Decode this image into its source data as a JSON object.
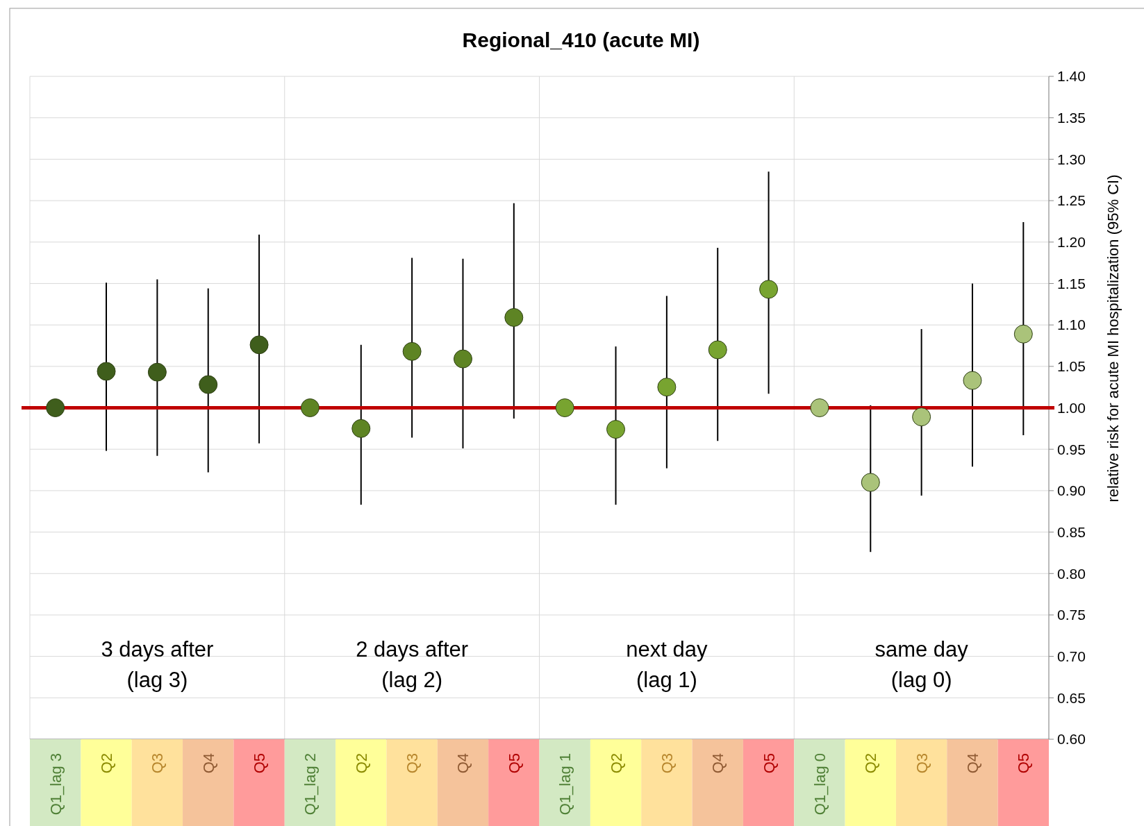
{
  "chart_data": {
    "type": "scatter",
    "title": "Regional_410 (acute MI)",
    "ylabel": "relative risk for acute MI hospitalization (95% CI)",
    "categories": [
      "Q1_lag 3",
      "Q2",
      "Q3",
      "Q4",
      "Q5",
      "Q1_lag 2",
      "Q2",
      "Q3",
      "Q4",
      "Q5",
      "Q1_lag 1",
      "Q2",
      "Q3",
      "Q4",
      "Q5",
      "Q1_lag 0",
      "Q2",
      "Q3",
      "Q4",
      "Q5"
    ],
    "values": [
      1.0,
      1.044,
      1.043,
      1.028,
      1.076,
      1.0,
      0.975,
      1.068,
      1.059,
      1.109,
      1.0,
      0.974,
      1.025,
      1.07,
      1.143,
      1.0,
      0.91,
      0.989,
      1.033,
      1.089
    ],
    "errors": [
      null,
      [
        0.948,
        1.151
      ],
      [
        0.942,
        1.155
      ],
      [
        0.922,
        1.144
      ],
      [
        0.957,
        1.209
      ],
      null,
      [
        0.883,
        1.076
      ],
      [
        0.964,
        1.181
      ],
      [
        0.951,
        1.18
      ],
      [
        0.987,
        1.247
      ],
      null,
      [
        0.883,
        1.074
      ],
      [
        0.927,
        1.135
      ],
      [
        0.96,
        1.193
      ],
      [
        1.017,
        1.285
      ],
      null,
      [
        0.826,
        1.003
      ],
      [
        0.894,
        1.095
      ],
      [
        0.929,
        1.15
      ],
      [
        0.967,
        1.224
      ]
    ],
    "colors": [
      "#3f5e1c",
      "#3f5e1c",
      "#3f5e1c",
      "#3f5e1c",
      "#3f5e1c",
      "#5e8424",
      "#5e8424",
      "#5e8424",
      "#5e8424",
      "#5e8424",
      "#78a430",
      "#78a430",
      "#78a430",
      "#78a430",
      "#78a430",
      "#aac37a",
      "#aac37a",
      "#aac37a",
      "#aac37a",
      "#aac37a"
    ],
    "marker": "circle",
    "grid": true,
    "ylim": [
      0.6,
      1.4
    ],
    "yticks": [
      {
        "value": 0.6,
        "label": "0.60"
      },
      {
        "value": 0.65,
        "label": "0.65"
      },
      {
        "value": 0.7,
        "label": "0.70"
      },
      {
        "value": 0.75,
        "label": "0.75"
      },
      {
        "value": 0.8,
        "label": "0.80"
      },
      {
        "value": 0.85,
        "label": "0.85"
      },
      {
        "value": 0.9,
        "label": "0.90"
      },
      {
        "value": 0.95,
        "label": "0.95"
      },
      {
        "value": 1.0,
        "label": "1.00"
      },
      {
        "value": 1.05,
        "label": "1.05"
      },
      {
        "value": 1.1,
        "label": "1.10"
      },
      {
        "value": 1.15,
        "label": "1.15"
      },
      {
        "value": 1.2,
        "label": "1.20"
      },
      {
        "value": 1.25,
        "label": "1.25"
      },
      {
        "value": 1.3,
        "label": "1.30"
      },
      {
        "value": 1.35,
        "label": "1.35"
      },
      {
        "value": 1.4,
        "label": "1.40"
      }
    ],
    "ref_lines": [
      {
        "axis": "y",
        "value": 1.0,
        "color": "#c00000"
      }
    ],
    "annotations": [
      "3 days after\n(lag 3)",
      "2 days after\n(lag 2)",
      "next day\n(lag 1)",
      "same day\n(lag 0)"
    ]
  }
}
